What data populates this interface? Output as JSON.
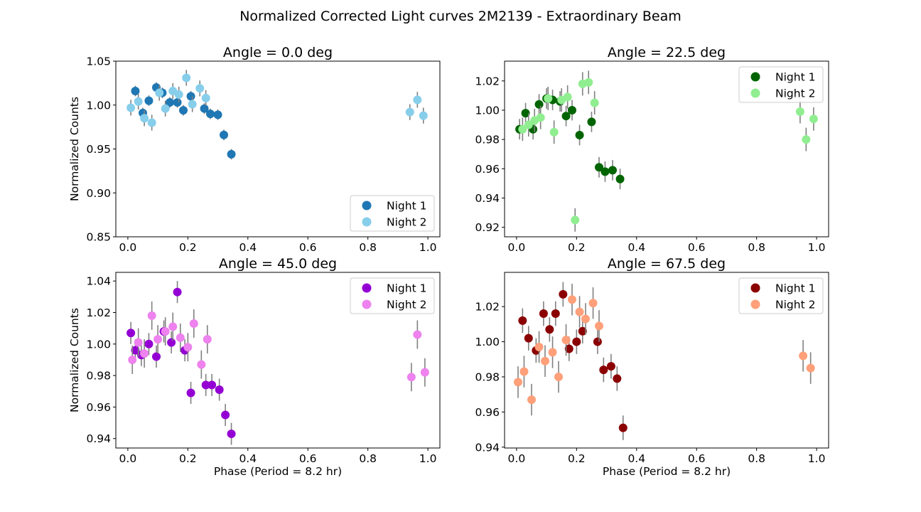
{
  "suptitle": "Normalized Corrected Light curves 2M2139 - Extraordinary Beam",
  "chart_data": [
    {
      "type": "scatter",
      "title": "Angle = 0.0 deg",
      "xlabel": "",
      "ylabel": "Normalized Counts",
      "xlim": [
        -0.04,
        1.04
      ],
      "ylim": [
        0.85,
        1.05
      ],
      "xticks": [
        "0.0",
        "0.2",
        "0.4",
        "0.6",
        "0.8",
        "1.0"
      ],
      "yticks": [
        "0.85",
        "0.90",
        "0.95",
        "1.00",
        "1.05"
      ],
      "legend_position": "lower-right",
      "error_bar_color": "#808080",
      "series": [
        {
          "name": "Night 1",
          "color": "#1f77b4",
          "x": [
            0.025,
            0.05,
            0.07,
            0.095,
            0.115,
            0.14,
            0.165,
            0.185,
            0.21,
            0.255,
            0.275,
            0.3,
            0.32,
            0.345
          ],
          "y": [
            1.016,
            0.991,
            1.005,
            1.02,
            1.014,
            1.003,
            1.003,
            0.994,
            1.01,
            0.996,
            0.99,
            0.989,
            0.966,
            0.944
          ],
          "err": [
            0.006,
            0.006,
            0.006,
            0.006,
            0.006,
            0.006,
            0.006,
            0.006,
            0.006,
            0.006,
            0.006,
            0.006,
            0.006,
            0.006
          ]
        },
        {
          "name": "Night 2",
          "color": "#87ceeb",
          "x": [
            0.01,
            0.035,
            0.055,
            0.08,
            0.105,
            0.125,
            0.15,
            0.17,
            0.195,
            0.215,
            0.24,
            0.26,
            0.94,
            0.965,
            0.985
          ],
          "y": [
            0.997,
            1.004,
            0.985,
            0.98,
            1.014,
            0.996,
            1.016,
            1.012,
            1.031,
            1.001,
            1.019,
            1.008,
            0.992,
            1.006,
            0.988
          ],
          "err": [
            0.009,
            0.009,
            0.009,
            0.009,
            0.009,
            0.009,
            0.009,
            0.009,
            0.009,
            0.009,
            0.009,
            0.009,
            0.009,
            0.009,
            0.009
          ]
        }
      ]
    },
    {
      "type": "scatter",
      "title": "Angle = 22.5 deg",
      "xlabel": "",
      "ylabel": "",
      "xlim": [
        -0.04,
        1.04
      ],
      "ylim": [
        0.9135,
        1.0335
      ],
      "xticks": [
        "0.0",
        "0.2",
        "0.4",
        "0.6",
        "0.8",
        "1.0"
      ],
      "yticks": [
        "0.92",
        "0.94",
        "0.96",
        "0.98",
        "1.00",
        "1.02"
      ],
      "legend_position": "upper-right",
      "error_bar_color": "#808080",
      "series": [
        {
          "name": "Night 1",
          "color": "#006400",
          "x": [
            0.01,
            0.03,
            0.055,
            0.075,
            0.1,
            0.12,
            0.145,
            0.165,
            0.185,
            0.21,
            0.25,
            0.275,
            0.295,
            0.32,
            0.345
          ],
          "y": [
            0.987,
            0.998,
            0.987,
            1.004,
            1.008,
            1.007,
            1.006,
            0.996,
            1.0,
            0.983,
            0.992,
            0.961,
            0.958,
            0.959,
            0.953
          ],
          "err": [
            0.007,
            0.007,
            0.007,
            0.007,
            0.007,
            0.007,
            0.007,
            0.007,
            0.007,
            0.007,
            0.007,
            0.007,
            0.007,
            0.007,
            0.007
          ]
        },
        {
          "name": "Night 2",
          "color": "#90ee90",
          "x": [
            0.02,
            0.04,
            0.06,
            0.08,
            0.105,
            0.125,
            0.15,
            0.17,
            0.195,
            0.22,
            0.24,
            0.26,
            0.945,
            0.965,
            0.99
          ],
          "y": [
            0.987,
            0.99,
            0.993,
            0.995,
            1.008,
            0.985,
            1.007,
            1.009,
            0.925,
            1.018,
            1.019,
            1.005,
            0.999,
            0.98,
            0.994
          ],
          "err": [
            0.008,
            0.008,
            0.008,
            0.008,
            0.008,
            0.008,
            0.008,
            0.008,
            0.008,
            0.008,
            0.008,
            0.008,
            0.008,
            0.008,
            0.008
          ]
        }
      ]
    },
    {
      "type": "scatter",
      "title": "Angle = 45.0 deg",
      "xlabel": "Phase (Period = 8.2 hr)",
      "ylabel": "Normalized Counts",
      "xlim": [
        -0.04,
        1.04
      ],
      "ylim": [
        0.934,
        1.0455
      ],
      "xticks": [
        "0.0",
        "0.2",
        "0.4",
        "0.6",
        "0.8",
        "1.0"
      ],
      "yticks": [
        "0.94",
        "0.96",
        "0.98",
        "1.00",
        "1.02",
        "1.04"
      ],
      "legend_position": "upper-right",
      "error_bar_color": "#808080",
      "series": [
        {
          "name": "Night 1",
          "color": "#9400d3",
          "x": [
            0.01,
            0.025,
            0.045,
            0.07,
            0.095,
            0.12,
            0.145,
            0.165,
            0.19,
            0.21,
            0.26,
            0.28,
            0.305,
            0.325,
            0.345
          ],
          "y": [
            1.007,
            0.996,
            0.993,
            1.0,
            0.992,
            1.008,
            1.001,
            1.033,
            0.996,
            0.969,
            0.974,
            0.974,
            0.971,
            0.955,
            0.943
          ],
          "err": [
            0.007,
            0.007,
            0.007,
            0.007,
            0.007,
            0.007,
            0.007,
            0.007,
            0.007,
            0.007,
            0.007,
            0.007,
            0.007,
            0.007,
            0.007
          ]
        },
        {
          "name": "Night 2",
          "color": "#ee82ee",
          "x": [
            0.015,
            0.035,
            0.055,
            0.08,
            0.1,
            0.125,
            0.15,
            0.175,
            0.2,
            0.22,
            0.245,
            0.265,
            0.945,
            0.965,
            0.99
          ],
          "y": [
            0.99,
            1.001,
            0.994,
            1.018,
            1.003,
            1.008,
            1.011,
            1.004,
            0.998,
            1.013,
            0.987,
            1.003,
            0.979,
            1.006,
            0.982
          ],
          "err": [
            0.009,
            0.009,
            0.009,
            0.009,
            0.009,
            0.009,
            0.009,
            0.009,
            0.009,
            0.009,
            0.009,
            0.009,
            0.009,
            0.009,
            0.009
          ]
        }
      ]
    },
    {
      "type": "scatter",
      "title": "Angle = 67.5 deg",
      "xlabel": "Phase (Period = 8.2 hr)",
      "ylabel": "",
      "xlim": [
        -0.04,
        1.04
      ],
      "ylim": [
        0.9395,
        1.0395
      ],
      "xticks": [
        "0.0",
        "0.2",
        "0.4",
        "0.6",
        "0.8",
        "1.0"
      ],
      "yticks": [
        "0.94",
        "0.96",
        "0.98",
        "1.00",
        "1.02"
      ],
      "legend_position": "upper-right",
      "error_bar_color": "#808080",
      "series": [
        {
          "name": "Night 1",
          "color": "#8b0000",
          "x": [
            0.02,
            0.04,
            0.065,
            0.09,
            0.11,
            0.13,
            0.155,
            0.175,
            0.2,
            0.22,
            0.27,
            0.29,
            0.315,
            0.335,
            0.355
          ],
          "y": [
            1.012,
            1.002,
            0.995,
            1.016,
            1.007,
            1.016,
            1.027,
            0.996,
            1.0,
            1.006,
            1.0,
            0.984,
            0.986,
            0.979,
            0.951
          ],
          "err": [
            0.007,
            0.007,
            0.007,
            0.007,
            0.007,
            0.007,
            0.007,
            0.007,
            0.007,
            0.007,
            0.007,
            0.007,
            0.007,
            0.007,
            0.007
          ]
        },
        {
          "name": "Night 2",
          "color": "#ffa07a",
          "x": [
            0.005,
            0.025,
            0.05,
            0.075,
            0.095,
            0.12,
            0.14,
            0.165,
            0.185,
            0.21,
            0.23,
            0.255,
            0.275,
            0.955,
            0.98
          ],
          "y": [
            0.977,
            0.983,
            0.967,
            0.997,
            0.989,
            0.994,
            0.98,
            1.001,
            1.024,
            1.017,
            1.013,
            1.022,
            1.009,
            0.992,
            0.985
          ],
          "err": [
            0.009,
            0.009,
            0.009,
            0.009,
            0.009,
            0.009,
            0.009,
            0.009,
            0.009,
            0.009,
            0.009,
            0.009,
            0.009,
            0.009,
            0.009
          ]
        }
      ]
    }
  ]
}
